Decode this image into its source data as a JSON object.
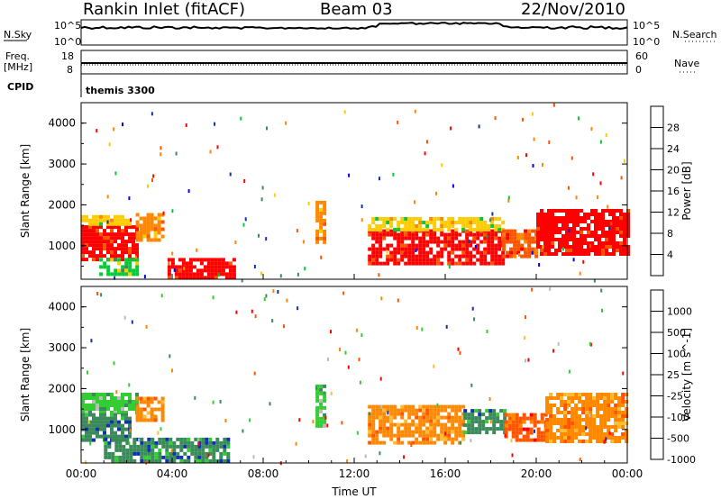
{
  "header": {
    "station": "Rankin Inlet (fitACF)",
    "beam": "Beam 03",
    "date": "22/Nov/2010"
  },
  "noise_panel": {
    "left_label": "N.Sky",
    "right_label": "N.Search",
    "left_ticks": [
      "10^5",
      "10^0"
    ],
    "right_ticks": [
      "10^5",
      "10^0"
    ]
  },
  "freq_panel": {
    "left_label_1": "Freq.",
    "left_label_2": "[MHz]",
    "right_label": "Nave",
    "left_ticks": [
      "18",
      "8"
    ],
    "right_ticks": [
      "60",
      "0"
    ]
  },
  "cpid": {
    "label": "CPID",
    "value": "themis 3300"
  },
  "x_axis": {
    "label": "Time UT",
    "ticks": [
      "00:00",
      "04:00",
      "08:00",
      "12:00",
      "16:00",
      "20:00",
      "00:00"
    ]
  },
  "chart_data": [
    {
      "type": "heatmap",
      "quantity": "Power",
      "ylabel": "Slant Range [km]",
      "colorbar_label": "Power [dB]",
      "colorbar_ticks": [
        "28",
        "24",
        "20",
        "16",
        "12",
        "8",
        "4"
      ],
      "colorbar_colors": [
        "#ff0000",
        "#ff5500",
        "#ff8800",
        "#ffcc00",
        "#00cc33",
        "#3a8a5a",
        "#1133aa",
        "#0000ff"
      ],
      "ylim": [
        180,
        4500
      ],
      "y_ticks": [
        "4000",
        "3000",
        "2000",
        "1000"
      ],
      "xlim_hours": [
        0,
        24
      ],
      "regions": [
        {
          "t0": 0.0,
          "t1": 2.4,
          "r0": 700,
          "r1": 1500,
          "level": 28
        },
        {
          "t0": 0.0,
          "t1": 2.2,
          "r0": 1500,
          "r1": 1750,
          "level": 16
        },
        {
          "t0": 2.4,
          "t1": 3.6,
          "r0": 1100,
          "r1": 1800,
          "level": 22
        },
        {
          "t0": 0.8,
          "t1": 2.4,
          "r0": 300,
          "r1": 700,
          "level": 12
        },
        {
          "t0": 3.8,
          "t1": 6.8,
          "r0": 220,
          "r1": 700,
          "level": 28
        },
        {
          "t0": 10.3,
          "t1": 10.7,
          "r0": 1100,
          "r1": 2100,
          "level": 20
        },
        {
          "t0": 12.6,
          "t1": 18.5,
          "r0": 600,
          "r1": 1400,
          "level": 28
        },
        {
          "t0": 12.6,
          "t1": 18.5,
          "r0": 1400,
          "r1": 1700,
          "level": 16
        },
        {
          "t0": 18.5,
          "t1": 20.0,
          "r0": 700,
          "r1": 1400,
          "level": 24
        },
        {
          "t0": 20.0,
          "t1": 24.0,
          "r0": 800,
          "r1": 1900,
          "level": 28
        }
      ]
    },
    {
      "type": "heatmap",
      "quantity": "Velocity",
      "ylabel": "Slant Range [km]",
      "colorbar_label": "Velocity [m s^-1]",
      "colorbar_ticks": [
        "1000",
        "500",
        "100",
        "25",
        "-25",
        "-100",
        "-500",
        "-1000"
      ],
      "colorbar_colors": [
        "#1133aa",
        "#3a8a5a",
        "#33cc33",
        "#bbbbbb",
        "#ffbb33",
        "#ff8800",
        "#ff5500",
        "#ff0000"
      ],
      "ylim": [
        180,
        4500
      ],
      "y_ticks": [
        "4000",
        "3000",
        "2000",
        "1000"
      ],
      "xlim_hours": [
        0,
        24
      ],
      "regions": [
        {
          "t0": 0.0,
          "t1": 2.4,
          "r0": 1400,
          "r1": 1900,
          "level": 100
        },
        {
          "t0": 0.0,
          "t1": 2.2,
          "r0": 700,
          "r1": 1400,
          "level": 500
        },
        {
          "t0": 2.4,
          "t1": 3.6,
          "r0": 1200,
          "r1": 1800,
          "level": -100
        },
        {
          "t0": 1.0,
          "t1": 6.5,
          "r0": 220,
          "r1": 800,
          "level": 500
        },
        {
          "t0": 10.3,
          "t1": 10.7,
          "r0": 1100,
          "r1": 2100,
          "level": 100
        },
        {
          "t0": 12.6,
          "t1": 16.8,
          "r0": 700,
          "r1": 1600,
          "level": -100
        },
        {
          "t0": 16.8,
          "t1": 18.6,
          "r0": 900,
          "r1": 1500,
          "level": 500
        },
        {
          "t0": 18.6,
          "t1": 20.4,
          "r0": 700,
          "r1": 1400,
          "level": -500
        },
        {
          "t0": 20.4,
          "t1": 24.0,
          "r0": 700,
          "r1": 1900,
          "level": -100
        }
      ]
    }
  ]
}
